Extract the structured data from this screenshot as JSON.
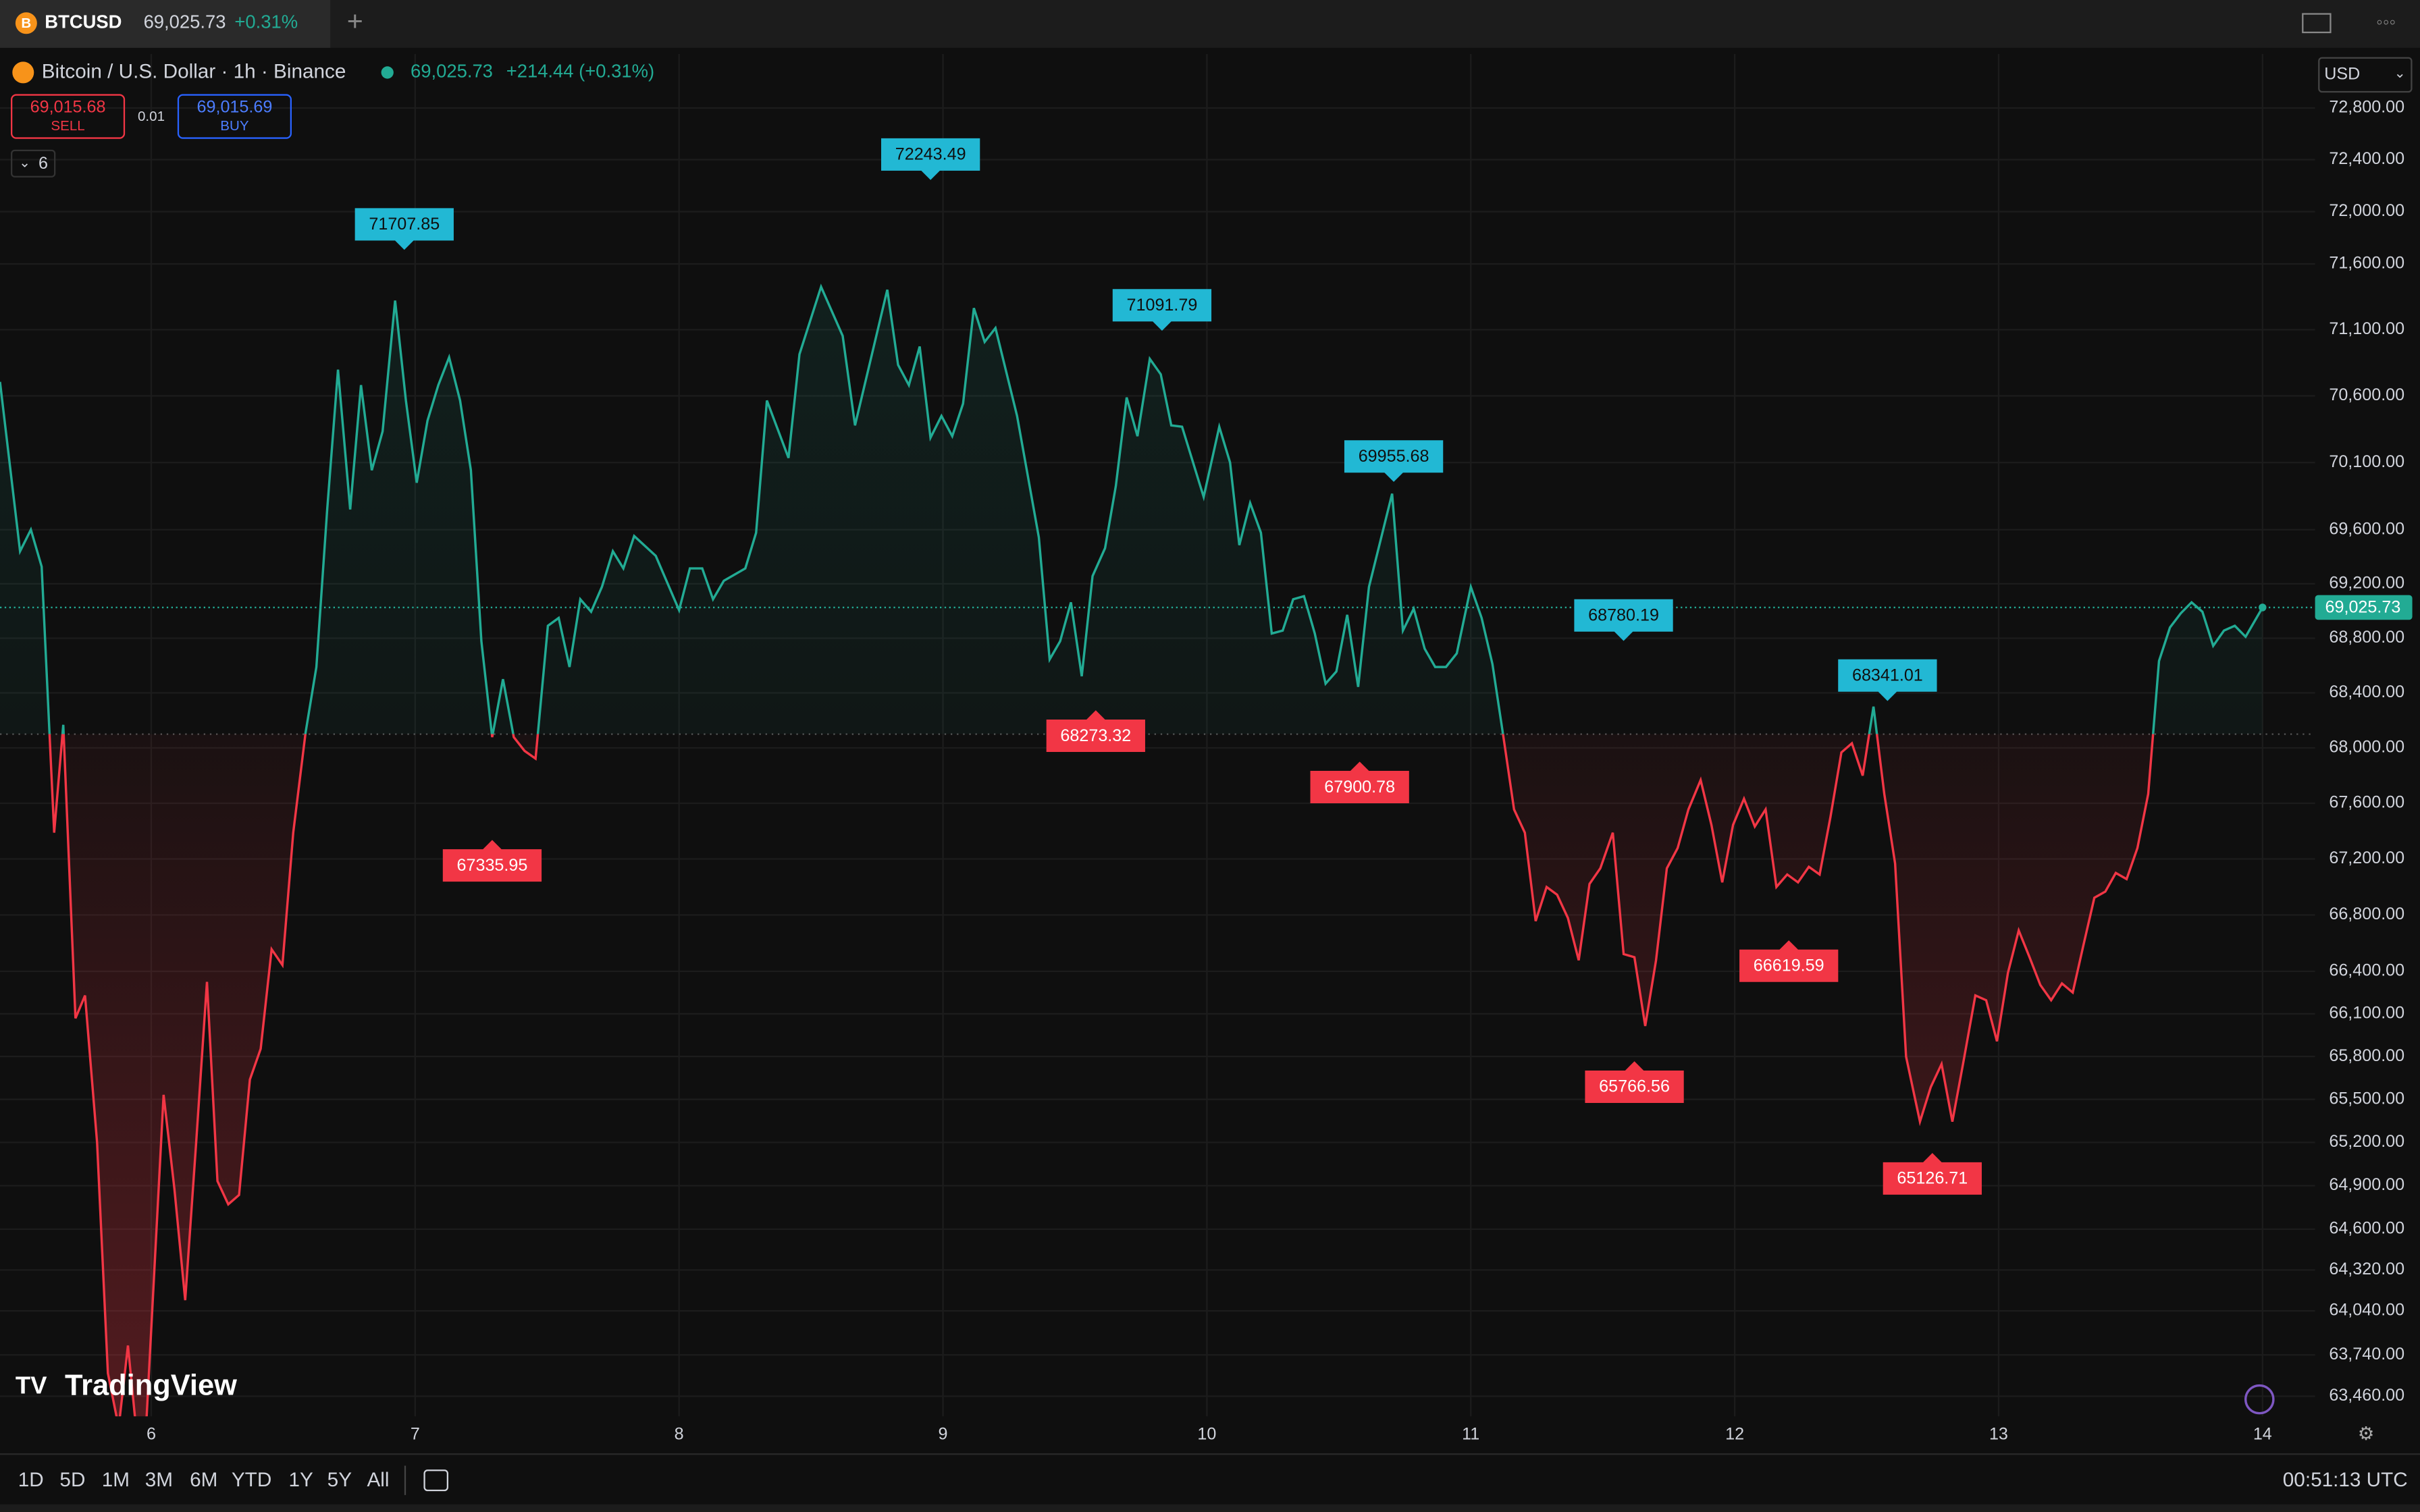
{
  "ui": {
    "tab": {
      "symbol": "BTCUSD",
      "price": "69,025.73",
      "change": "+0.31%"
    },
    "legend": {
      "price": "69,025.73",
      "change": "+214.44 (+0.31%)"
    },
    "sell": {
      "price": "69,015.68",
      "label": "SELL"
    },
    "spread": "0.01",
    "buy": {
      "price": "69,015.69",
      "label": "BUY"
    },
    "indicators": "6",
    "currency": "USD",
    "brand": "TradingView",
    "ranges": [
      "1D",
      "5D",
      "1M",
      "3M",
      "6M",
      "YTD",
      "1Y",
      "5Y",
      "All"
    ],
    "clock": "00:51:13 UTC"
  },
  "chart_data": {
    "type": "baseline",
    "log_scale": true,
    "grid": true,
    "baseline": 68100,
    "up_color": "#22ab94",
    "down_color": "#f23645",
    "high_color": "#22b8d4",
    "last_price": {
      "value": 69025.73,
      "label": "69,025.73"
    },
    "xlim": [
      5.427,
      14.199
    ],
    "xticks": [
      6,
      7,
      8,
      9,
      10,
      11,
      12,
      13,
      14
    ],
    "ylim": [
      63324,
      73220
    ],
    "yticks": [
      {
        "value": 72800,
        "label": "72,800.00"
      },
      {
        "value": 72400,
        "label": "72,400.00"
      },
      {
        "value": 72000,
        "label": "72,000.00"
      },
      {
        "value": 71600,
        "label": "71,600.00"
      },
      {
        "value": 71100,
        "label": "71,100.00"
      },
      {
        "value": 70600,
        "label": "70,600.00"
      },
      {
        "value": 70100,
        "label": "70,100.00"
      },
      {
        "value": 69600,
        "label": "69,600.00"
      },
      {
        "value": 69200,
        "label": "69,200.00"
      },
      {
        "value": 68800,
        "label": "68,800.00"
      },
      {
        "value": 68400,
        "label": "68,400.00"
      },
      {
        "value": 68000,
        "label": "68,000.00"
      },
      {
        "value": 67600,
        "label": "67,600.00"
      },
      {
        "value": 67200,
        "label": "67,200.00"
      },
      {
        "value": 66800,
        "label": "66,800.00"
      },
      {
        "value": 66400,
        "label": "66,400.00"
      },
      {
        "value": 66100,
        "label": "66,100.00"
      },
      {
        "value": 65800,
        "label": "65,800.00"
      },
      {
        "value": 65500,
        "label": "65,500.00"
      },
      {
        "value": 65200,
        "label": "65,200.00"
      },
      {
        "value": 64900,
        "label": "64,900.00"
      },
      {
        "value": 64600,
        "label": "64,600.00"
      },
      {
        "value": 64320,
        "label": "64,320.00"
      },
      {
        "value": 64040,
        "label": "64,040.00"
      },
      {
        "value": 63740,
        "label": "63,740.00"
      },
      {
        "value": 63460,
        "label": "63,460.00"
      }
    ],
    "x": [
      5.427,
      5.503,
      5.544,
      5.585,
      5.632,
      5.667,
      5.713,
      5.749,
      5.795,
      5.836,
      5.877,
      5.912,
      5.942,
      5.982,
      6.047,
      6.088,
      6.129,
      6.17,
      6.211,
      6.251,
      6.292,
      6.333,
      6.374,
      6.415,
      6.456,
      6.497,
      6.538,
      6.585,
      6.626,
      6.667,
      6.708,
      6.754,
      6.795,
      6.836,
      6.877,
      6.924,
      6.965,
      7.006,
      7.047,
      7.088,
      7.129,
      7.17,
      7.211,
      7.251,
      7.292,
      7.333,
      7.374,
      7.415,
      7.456,
      7.503,
      7.544,
      7.585,
      7.626,
      7.667,
      7.708,
      7.749,
      7.789,
      7.83,
      7.912,
      8.0,
      8.041,
      8.088,
      8.129,
      8.17,
      8.251,
      8.292,
      8.333,
      8.415,
      8.456,
      8.538,
      8.62,
      8.667,
      8.789,
      8.83,
      8.871,
      8.912,
      8.953,
      8.994,
      9.035,
      9.076,
      9.117,
      9.158,
      9.199,
      9.281,
      9.363,
      9.404,
      9.444,
      9.485,
      9.526,
      9.567,
      9.614,
      9.655,
      9.696,
      9.737,
      9.784,
      9.825,
      9.865,
      9.906,
      9.988,
      10.047,
      10.088,
      10.123,
      10.164,
      10.205,
      10.246,
      10.287,
      10.327,
      10.368,
      10.409,
      10.45,
      10.491,
      10.532,
      10.573,
      10.614,
      10.702,
      10.743,
      10.784,
      10.825,
      10.865,
      10.906,
      10.947,
      11.0,
      11.041,
      11.082,
      11.123,
      11.164,
      11.205,
      11.246,
      11.287,
      11.327,
      11.368,
      11.409,
      11.45,
      11.491,
      11.538,
      11.579,
      11.62,
      11.661,
      11.702,
      11.743,
      11.784,
      11.825,
      11.871,
      11.912,
      11.953,
      11.994,
      12.035,
      12.076,
      12.117,
      12.158,
      12.199,
      12.24,
      12.281,
      12.322,
      12.363,
      12.404,
      12.444,
      12.485,
      12.526,
      12.567,
      12.608,
      12.649,
      12.702,
      12.743,
      12.784,
      12.825,
      12.865,
      12.912,
      12.953,
      12.994,
      13.035,
      13.076,
      13.117,
      13.158,
      13.199,
      13.24,
      13.281,
      13.322,
      13.363,
      13.404,
      13.444,
      13.485,
      13.526,
      13.567,
      13.608,
      13.649,
      13.69,
      13.731,
      13.772,
      13.813,
      13.854,
      13.895,
      13.936,
      14.0
    ],
    "series": [
      {
        "name": "Bitcoin / U.S. Dollar · 1h · Binance",
        "values": [
          70705,
          69440,
          69600,
          69326,
          67389,
          68167,
          66068,
          66229,
          65200,
          63616,
          63250,
          63804,
          63250,
          63300,
          65532,
          64879,
          64113,
          65200,
          66325,
          64932,
          64771,
          64836,
          65639,
          65854,
          66556,
          66444,
          67389,
          68111,
          68589,
          69751,
          70798,
          69751,
          70681,
          70042,
          70333,
          71321,
          70565,
          69949,
          70414,
          70681,
          70891,
          70565,
          70042,
          68778,
          68078,
          68500,
          68078,
          67978,
          67922,
          68891,
          68949,
          68589,
          69086,
          68994,
          69177,
          69440,
          69314,
          69554,
          69406,
          69006,
          69314,
          69314,
          69086,
          69223,
          69314,
          69577,
          70565,
          70135,
          70914,
          71426,
          71053,
          70379,
          71403,
          70833,
          70681,
          70972,
          70286,
          70449,
          70298,
          70542,
          71263,
          71007,
          71112,
          70449,
          69543,
          68644,
          68778,
          69063,
          68522,
          69257,
          69463,
          69926,
          70588,
          70298,
          70879,
          70763,
          70379,
          70368,
          69844,
          70368,
          70100,
          69486,
          69799,
          69577,
          68834,
          68856,
          69086,
          69109,
          68834,
          68467,
          68556,
          68971,
          68444,
          69177,
          69868,
          68856,
          69017,
          68722,
          68589,
          68589,
          68689,
          69177,
          68949,
          68611,
          68089,
          67556,
          67389,
          66756,
          67000,
          66944,
          66778,
          66478,
          67022,
          67133,
          67389,
          66522,
          66500,
          66014,
          66478,
          67133,
          67278,
          67556,
          67767,
          67444,
          67033,
          67444,
          67633,
          67433,
          67556,
          67000,
          67089,
          67033,
          67144,
          67089,
          67500,
          67967,
          68033,
          67800,
          68300,
          67667,
          67167,
          65800,
          65345,
          65586,
          65746,
          65345,
          65746,
          66229,
          66196,
          65907,
          66389,
          66689,
          66500,
          66304,
          66196,
          66314,
          66250,
          66589,
          66922,
          66967,
          67100,
          67056,
          67278,
          67667,
          68633,
          68878,
          68983,
          69063,
          68994,
          68744,
          68856,
          68891,
          68811,
          69025.73
        ]
      }
    ],
    "highs": [
      {
        "x": 6.959,
        "value": 71707.85
      },
      {
        "x": 8.953,
        "value": 72243.49
      },
      {
        "x": 9.83,
        "value": 71091.79
      },
      {
        "x": 10.708,
        "value": 69955.68
      },
      {
        "x": 11.579,
        "value": 68780.19
      },
      {
        "x": 12.579,
        "value": 68341.01
      }
    ],
    "lows": [
      {
        "x": 7.292,
        "value": 67335.95
      },
      {
        "x": 9.579,
        "value": 68273.32
      },
      {
        "x": 10.579,
        "value": 67900.78
      },
      {
        "x": 11.62,
        "value": 65766.56
      },
      {
        "x": 12.205,
        "value": 66619.59
      },
      {
        "x": 12.749,
        "value": 65126.71
      }
    ]
  }
}
